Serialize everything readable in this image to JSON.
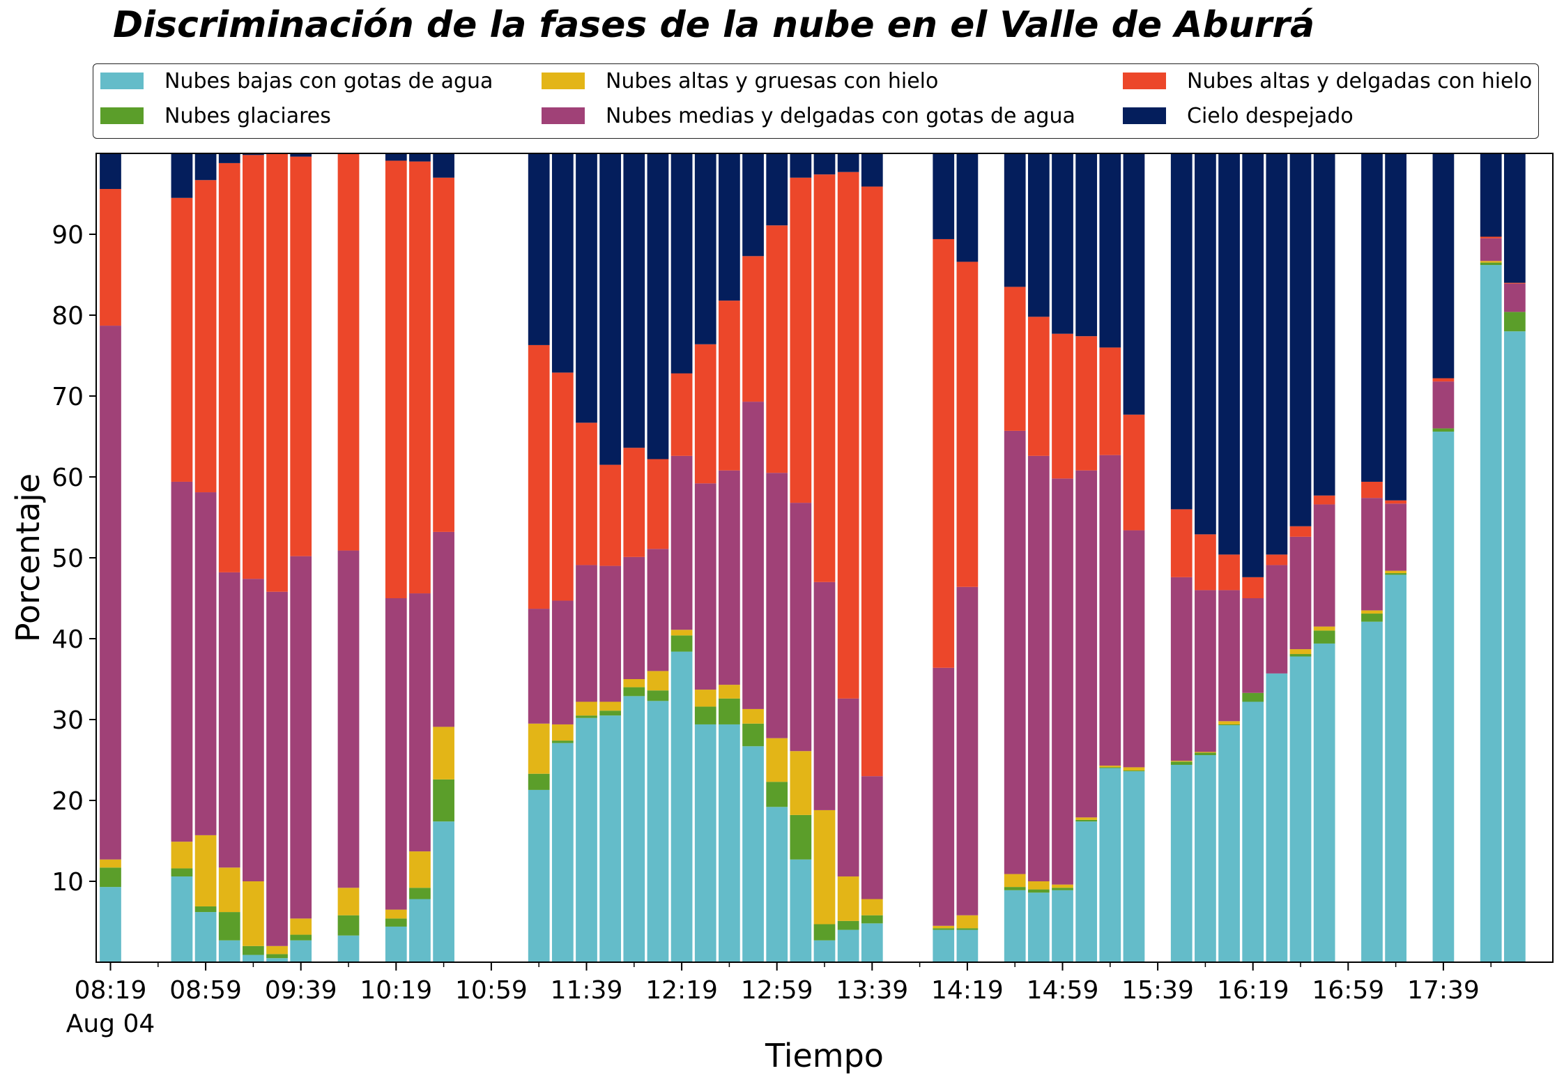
{
  "chart_data": {
    "type": "bar",
    "stacked": true,
    "title": "Discriminación de la fases de la nube en el Valle de Aburrá",
    "xlabel": "Tiempo",
    "ylabel": "Porcentaje",
    "ylim": [
      0,
      100
    ],
    "yticks": [
      10,
      20,
      30,
      40,
      50,
      60,
      70,
      80,
      90
    ],
    "xlim_minutes": [
      "08:13",
      "18:25"
    ],
    "xticks": [
      {
        "time": "08:19",
        "label": "08:19",
        "sublabel": "Aug 04"
      },
      {
        "time": "08:59",
        "label": "08:59"
      },
      {
        "time": "09:39",
        "label": "09:39"
      },
      {
        "time": "10:19",
        "label": "10:19"
      },
      {
        "time": "10:59",
        "label": "10:59"
      },
      {
        "time": "11:39",
        "label": "11:39"
      },
      {
        "time": "12:19",
        "label": "12:19"
      },
      {
        "time": "12:59",
        "label": "12:59"
      },
      {
        "time": "13:39",
        "label": "13:39"
      },
      {
        "time": "14:19",
        "label": "14:19"
      },
      {
        "time": "14:59",
        "label": "14:59"
      },
      {
        "time": "15:39",
        "label": "15:39"
      },
      {
        "time": "16:19",
        "label": "16:19"
      },
      {
        "time": "16:59",
        "label": "16:59"
      },
      {
        "time": "17:39",
        "label": "17:39"
      }
    ],
    "minor_xticks": [
      "08:39",
      "09:19",
      "09:59",
      "10:39",
      "11:19",
      "11:59",
      "12:39",
      "13:19",
      "13:59",
      "14:39",
      "15:19",
      "15:59",
      "16:39",
      "17:19",
      "17:59"
    ],
    "legend_position": "top",
    "series": [
      {
        "name": "Nubes bajas con gotas de agua",
        "color": "#64bcc9"
      },
      {
        "name": "Nubes glaciares",
        "color": "#5b9e2a"
      },
      {
        "name": "Nubes altas y gruesas con hielo",
        "color": "#e3b517"
      },
      {
        "name": "Nubes medias y delgadas con gotas de agua",
        "color": "#a04177"
      },
      {
        "name": "Nubes altas y delgadas con hielo",
        "color": "#ec472a"
      },
      {
        "name": "Cielo despejado",
        "color": "#041e5c"
      }
    ],
    "bars": [
      {
        "time": "08:19",
        "values": [
          9.3,
          2.4,
          1.0,
          66.0,
          16.9,
          4.4
        ]
      },
      {
        "time": "08:49",
        "values": [
          10.6,
          1.0,
          3.3,
          44.5,
          35.1,
          5.5
        ]
      },
      {
        "time": "08:59",
        "values": [
          6.2,
          0.7,
          8.8,
          42.4,
          38.6,
          3.3
        ]
      },
      {
        "time": "09:09",
        "values": [
          2.7,
          3.5,
          5.5,
          36.5,
          50.6,
          1.2
        ]
      },
      {
        "time": "09:19",
        "values": [
          0.9,
          1.1,
          8.0,
          37.4,
          52.4,
          0.2
        ]
      },
      {
        "time": "09:29",
        "values": [
          0.5,
          0.5,
          1.0,
          43.8,
          54.3,
          0.1
        ]
      },
      {
        "time": "09:39",
        "values": [
          2.7,
          0.7,
          2.0,
          44.8,
          49.4,
          0.4
        ]
      },
      {
        "time": "09:59",
        "values": [
          3.3,
          2.5,
          3.4,
          41.7,
          49.1,
          0.0
        ]
      },
      {
        "time": "10:19",
        "values": [
          4.4,
          1.0,
          1.1,
          38.5,
          54.1,
          0.9
        ]
      },
      {
        "time": "10:29",
        "values": [
          7.8,
          1.4,
          4.5,
          31.9,
          53.4,
          3.0
        ]
      },
      {
        "time": "10:39",
        "values": [
          17.4,
          5.2,
          6.5,
          24.1,
          43.8,
          3.0
        ]
      },
      {
        "time": "11:19",
        "values": [
          21.3,
          2.0,
          6.2,
          14.2,
          32.6,
          23.7
        ]
      },
      {
        "time": "11:29",
        "values": [
          27.1,
          0.3,
          2.0,
          15.3,
          28.2,
          27.1
        ]
      },
      {
        "time": "11:39",
        "values": [
          30.2,
          0.3,
          1.7,
          16.9,
          17.6,
          33.3
        ]
      },
      {
        "time": "11:49",
        "values": [
          30.5,
          0.6,
          1.1,
          16.8,
          12.5,
          38.5
        ]
      },
      {
        "time": "11:59",
        "values": [
          32.9,
          1.1,
          1.0,
          15.1,
          13.5,
          36.4
        ]
      },
      {
        "time": "12:09",
        "values": [
          32.3,
          1.3,
          2.4,
          15.1,
          11.1,
          37.8
        ]
      },
      {
        "time": "12:19",
        "values": [
          38.4,
          2.0,
          0.7,
          21.5,
          10.2,
          27.2
        ]
      },
      {
        "time": "12:29",
        "values": [
          29.4,
          2.2,
          2.1,
          25.5,
          17.2,
          23.6
        ]
      },
      {
        "time": "12:39",
        "values": [
          29.4,
          3.2,
          1.7,
          26.5,
          21.0,
          18.2
        ]
      },
      {
        "time": "12:49",
        "values": [
          26.7,
          2.8,
          1.8,
          38.0,
          18.0,
          12.7
        ]
      },
      {
        "time": "12:59",
        "values": [
          19.2,
          3.1,
          5.4,
          32.8,
          30.6,
          8.9
        ]
      },
      {
        "time": "13:09",
        "values": [
          12.7,
          5.5,
          7.9,
          30.7,
          40.2,
          3.0
        ]
      },
      {
        "time": "13:19",
        "values": [
          2.7,
          2.0,
          14.1,
          28.2,
          50.4,
          2.6
        ]
      },
      {
        "time": "13:29",
        "values": [
          4.0,
          1.1,
          5.5,
          22.0,
          65.1,
          2.3
        ]
      },
      {
        "time": "13:39",
        "values": [
          4.8,
          1.0,
          2.0,
          15.2,
          72.9,
          4.1
        ]
      },
      {
        "time": "14:09",
        "values": [
          4.0,
          0.2,
          0.3,
          31.9,
          53.0,
          10.6
        ]
      },
      {
        "time": "14:19",
        "values": [
          4.0,
          0.2,
          1.6,
          40.6,
          40.2,
          13.4
        ]
      },
      {
        "time": "14:39",
        "values": [
          8.9,
          0.4,
          1.6,
          54.8,
          17.8,
          16.5
        ]
      },
      {
        "time": "14:49",
        "values": [
          8.6,
          0.4,
          1.0,
          52.6,
          17.2,
          20.2
        ]
      },
      {
        "time": "14:59",
        "values": [
          8.9,
          0.3,
          0.4,
          50.2,
          17.9,
          22.3
        ]
      },
      {
        "time": "15:09",
        "values": [
          17.4,
          0.2,
          0.3,
          42.9,
          16.6,
          22.6
        ]
      },
      {
        "time": "15:19",
        "values": [
          24.0,
          0.1,
          0.2,
          38.4,
          13.3,
          24.0
        ]
      },
      {
        "time": "15:29",
        "values": [
          23.6,
          0.1,
          0.4,
          29.3,
          14.3,
          32.3
        ]
      },
      {
        "time": "15:49",
        "values": [
          24.4,
          0.4,
          0.1,
          22.7,
          8.4,
          44.0
        ]
      },
      {
        "time": "15:59",
        "values": [
          25.6,
          0.3,
          0.1,
          20.0,
          6.9,
          47.1
        ]
      },
      {
        "time": "16:09",
        "values": [
          29.3,
          0.1,
          0.4,
          16.2,
          4.4,
          49.6
        ]
      },
      {
        "time": "16:19",
        "values": [
          32.2,
          1.1,
          0.0,
          11.7,
          2.6,
          52.4
        ]
      },
      {
        "time": "16:29",
        "values": [
          35.7,
          0.0,
          0.0,
          13.4,
          1.3,
          49.6
        ]
      },
      {
        "time": "16:39",
        "values": [
          37.8,
          0.3,
          0.6,
          13.9,
          1.3,
          46.1
        ]
      },
      {
        "time": "16:49",
        "values": [
          39.4,
          1.6,
          0.5,
          15.1,
          1.1,
          42.3
        ]
      },
      {
        "time": "17:09",
        "values": [
          42.1,
          1.0,
          0.4,
          13.9,
          2.0,
          40.6
        ]
      },
      {
        "time": "17:19",
        "values": [
          47.9,
          0.2,
          0.3,
          8.3,
          0.4,
          42.9
        ]
      },
      {
        "time": "17:39",
        "values": [
          65.6,
          0.4,
          0.0,
          5.8,
          0.4,
          27.8
        ]
      },
      {
        "time": "17:59",
        "values": [
          86.2,
          0.3,
          0.2,
          2.8,
          0.2,
          10.3
        ]
      },
      {
        "time": "18:09",
        "values": [
          78.0,
          2.4,
          0.0,
          3.5,
          0.1,
          16.0
        ]
      }
    ]
  }
}
